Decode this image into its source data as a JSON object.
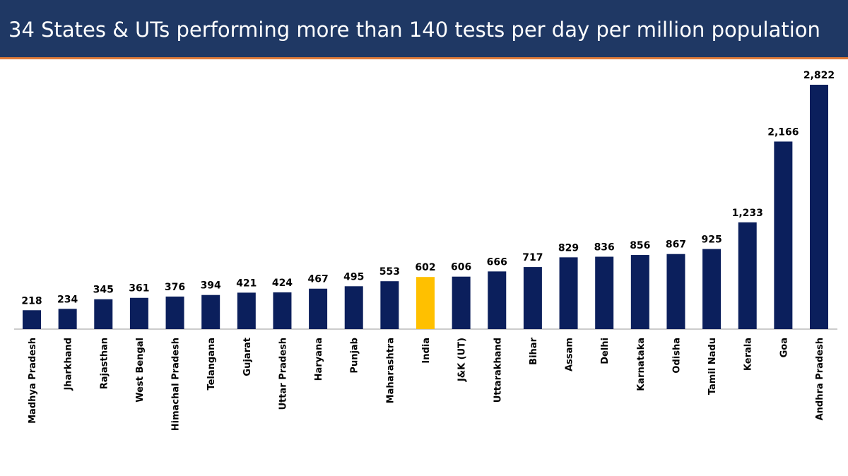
{
  "chart_data": {
    "type": "bar",
    "title": "34 States & UTs performing more than 140 tests per day per million population",
    "categories": [
      "Madhya Pradesh",
      "Jharkhand",
      "Rajasthan",
      "West Bengal",
      "Himachal Pradesh",
      "Telangana",
      "Gujarat",
      "Uttar Pradesh",
      "Haryana",
      "Punjab",
      "Maharashtra",
      "India",
      "J&K (UT)",
      "Uttarakhand",
      "Bihar",
      "Assam",
      "Delhi",
      "Karnataka",
      "Odisha",
      "Tamil Nadu",
      "Kerala",
      "Goa",
      "Andhra Pradesh"
    ],
    "values": [
      218,
      234,
      345,
      361,
      376,
      394,
      421,
      424,
      467,
      495,
      553,
      602,
      606,
      666,
      717,
      829,
      836,
      856,
      867,
      925,
      1233,
      2166,
      2822
    ],
    "value_labels": [
      "218",
      "234",
      "345",
      "361",
      "376",
      "394",
      "421",
      "424",
      "467",
      "495",
      "553",
      "602",
      "606",
      "666",
      "717",
      "829",
      "836",
      "856",
      "867",
      "925",
      "1,233",
      "2,166",
      "2,822"
    ],
    "colors": [
      "#0b1f5c",
      "#0b1f5c",
      "#0b1f5c",
      "#0b1f5c",
      "#0b1f5c",
      "#0b1f5c",
      "#0b1f5c",
      "#0b1f5c",
      "#0b1f5c",
      "#0b1f5c",
      "#0b1f5c",
      "#ffc000",
      "#0b1f5c",
      "#0b1f5c",
      "#0b1f5c",
      "#0b1f5c",
      "#0b1f5c",
      "#0b1f5c",
      "#0b1f5c",
      "#0b1f5c",
      "#0b1f5c",
      "#0b1f5c",
      "#0b1f5c"
    ]
  }
}
